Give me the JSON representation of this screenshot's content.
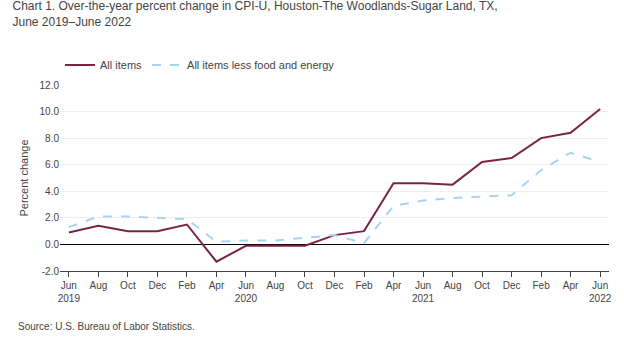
{
  "chart_data": {
    "type": "line",
    "title": "Chart 1. Over-the-year percent change in CPI-U, Houston-The Woodlands-Sugar Land, TX,\nJune 2019–June 2022",
    "y_label": "Percent change",
    "annotations": [
      "Source: U.S. Bureau of Labor Statistics."
    ],
    "categories": [
      "Jun\n2019",
      "Aug",
      "Oct",
      "Dec",
      "Feb",
      "Apr",
      "Jun\n2020",
      "Aug",
      "Oct",
      "Dec",
      "Feb",
      "Apr",
      "Jun\n2021",
      "Aug",
      "Oct",
      "Dec",
      "Feb",
      "Apr",
      "Jun\n2022"
    ],
    "series": [
      {
        "name": "All items",
        "color": "#7b2346",
        "line_style": "solid",
        "values": [
          0.9,
          1.4,
          1.0,
          1.0,
          1.5,
          -1.3,
          -0.1,
          -0.1,
          -0.1,
          0.7,
          1.0,
          4.6,
          4.6,
          4.5,
          6.2,
          6.5,
          8.0,
          8.4,
          10.2
        ]
      },
      {
        "name": "All items less food and energy",
        "color": "#a8d4f0",
        "line_style": "dashed",
        "values": [
          1.3,
          2.1,
          2.1,
          2.0,
          1.9,
          0.2,
          0.3,
          0.3,
          0.5,
          0.7,
          0.1,
          2.9,
          3.3,
          3.5,
          3.6,
          3.7,
          5.6,
          6.9,
          6.2
        ]
      }
    ],
    "ylim": [
      -2.0,
      12.0
    ],
    "yticks": [
      {
        "value": -2.0,
        "label": "-2.0"
      },
      {
        "value": 0.0,
        "label": "0.0"
      },
      {
        "value": 2.0,
        "label": "2.0"
      },
      {
        "value": 4.0,
        "label": "4.0"
      },
      {
        "value": 6.0,
        "label": "6.0"
      },
      {
        "value": 8.0,
        "label": "8.0"
      },
      {
        "value": 10.0,
        "label": "10.0"
      },
      {
        "value": 12.0,
        "label": "12.0"
      }
    ],
    "grid": true,
    "legend": "top"
  }
}
